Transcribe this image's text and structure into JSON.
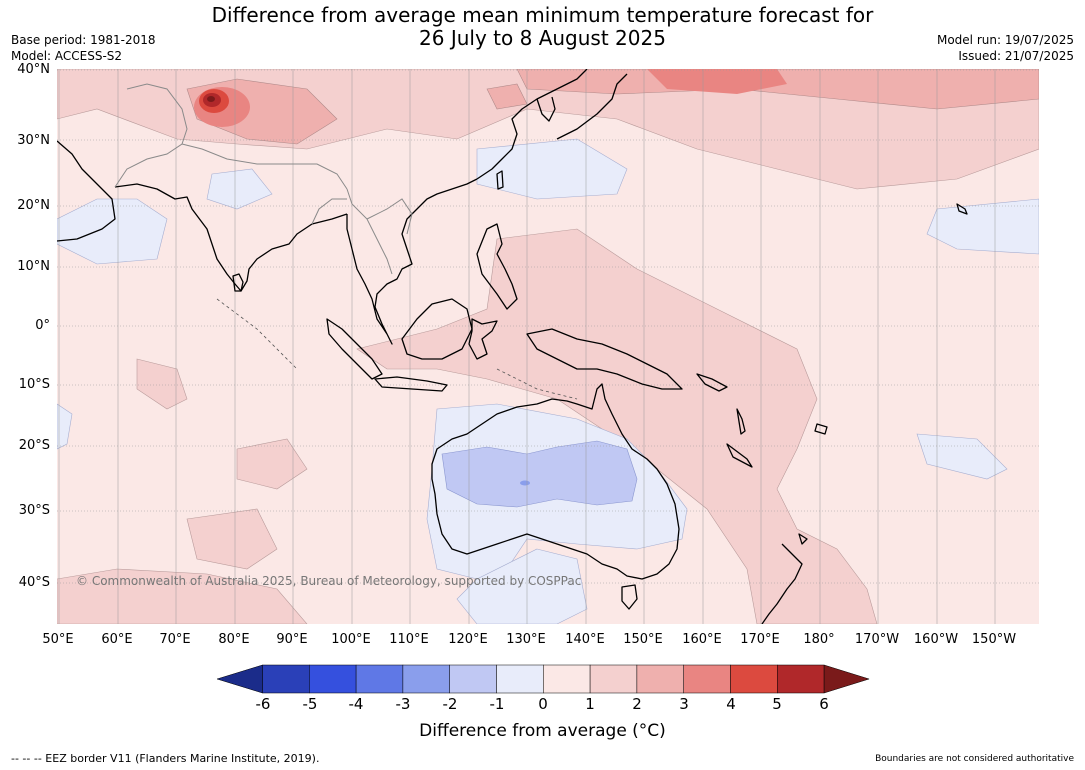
{
  "header": {
    "title_line1": "Difference from average mean minimum temperature forecast for",
    "title_line2": "26 July to 8 August 2025",
    "base_period": "Base period: 1981-2018",
    "model": "Model: ACCESS-S2",
    "model_run": "Model run: 19/07/2025",
    "issued": "Issued: 21/07/2025"
  },
  "map": {
    "region": "Indian Ocean, Asia, Maritime Continent, Australia and western Pacific",
    "lat_labels": [
      "40°N",
      "30°N",
      "20°N",
      "10°N",
      "0°",
      "10°S",
      "20°S",
      "30°S",
      "40°S"
    ],
    "lon_labels": [
      "50°E",
      "60°E",
      "70°E",
      "80°E",
      "90°E",
      "100°E",
      "110°E",
      "120°E",
      "130°E",
      "140°E",
      "150°E",
      "160°E",
      "170°E",
      "180°",
      "170°W",
      "160°W",
      "150°W"
    ],
    "copyright": "© Commonwealth of Australia 2025, Bureau of Meteorology, supported by COSPPac",
    "background_color": "#fbe8e6",
    "land_outline_color": "#000000",
    "border_color": "#8a8a8a"
  },
  "colorbar": {
    "labels": [
      "-6",
      "-5",
      "-4",
      "-3",
      "-2",
      "-1",
      "0",
      "1",
      "2",
      "3",
      "4",
      "5",
      "6"
    ],
    "colors": [
      "#1b2c8a",
      "#2a40b8",
      "#3550de",
      "#5f78e6",
      "#8a9eec",
      "#c0c8f3",
      "#e8ecfa",
      "#fbe8e6",
      "#f4d0cf",
      "#efb0ae",
      "#e98582",
      "#dc4a3f",
      "#b0282a",
      "#7a1a1a"
    ],
    "title": "Difference from average (°C)"
  },
  "footer": {
    "eez_note": "--  --  -- EEZ border V11 (Flanders Marine Institute, 2019).",
    "boundaries_note": "Boundaries are not considered authoritative"
  }
}
